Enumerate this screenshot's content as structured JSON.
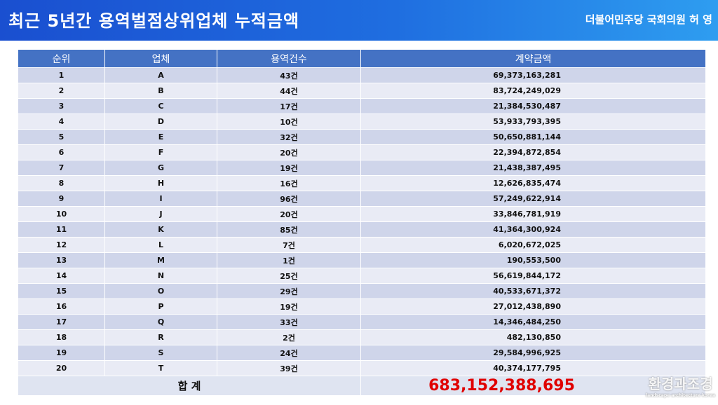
{
  "header": {
    "title": "최근 5년간 용역벌점상위업체 누적금액",
    "author": "더불어민주당  국회의원  허 영"
  },
  "table": {
    "columns": [
      "순위",
      "업체",
      "용역건수",
      "계약금액"
    ],
    "rows": [
      [
        "1",
        "A",
        "43건",
        "69,373,163,281"
      ],
      [
        "2",
        "B",
        "44건",
        "83,724,249,029"
      ],
      [
        "3",
        "C",
        "17건",
        "21,384,530,487"
      ],
      [
        "4",
        "D",
        "10건",
        "53,933,793,395"
      ],
      [
        "5",
        "E",
        "32건",
        "50,650,881,144"
      ],
      [
        "6",
        "F",
        "20건",
        "22,394,872,854"
      ],
      [
        "7",
        "G",
        "19건",
        "21,438,387,495"
      ],
      [
        "8",
        "H",
        "16건",
        "12,626,835,474"
      ],
      [
        "9",
        "I",
        "96건",
        "57,249,622,914"
      ],
      [
        "10",
        "J",
        "20건",
        "33,846,781,919"
      ],
      [
        "11",
        "K",
        "85건",
        "41,364,300,924"
      ],
      [
        "12",
        "L",
        "7건",
        "6,020,672,025"
      ],
      [
        "13",
        "M",
        "1건",
        "190,553,500"
      ],
      [
        "14",
        "N",
        "25건",
        "56,619,844,172"
      ],
      [
        "15",
        "O",
        "29건",
        "40,533,671,372"
      ],
      [
        "16",
        "P",
        "19건",
        "27,012,438,890"
      ],
      [
        "17",
        "Q",
        "33건",
        "14,346,484,250"
      ],
      [
        "18",
        "R",
        "2건",
        "482,130,850"
      ],
      [
        "19",
        "S",
        "24건",
        "29,584,996,925"
      ],
      [
        "20",
        "T",
        "39건",
        "40,374,177,795"
      ]
    ],
    "total_label": "합 계",
    "total_amount": "683,152,388,695"
  },
  "watermark": {
    "title": "환경과조경",
    "subtitle": "landscape architecture korea"
  }
}
